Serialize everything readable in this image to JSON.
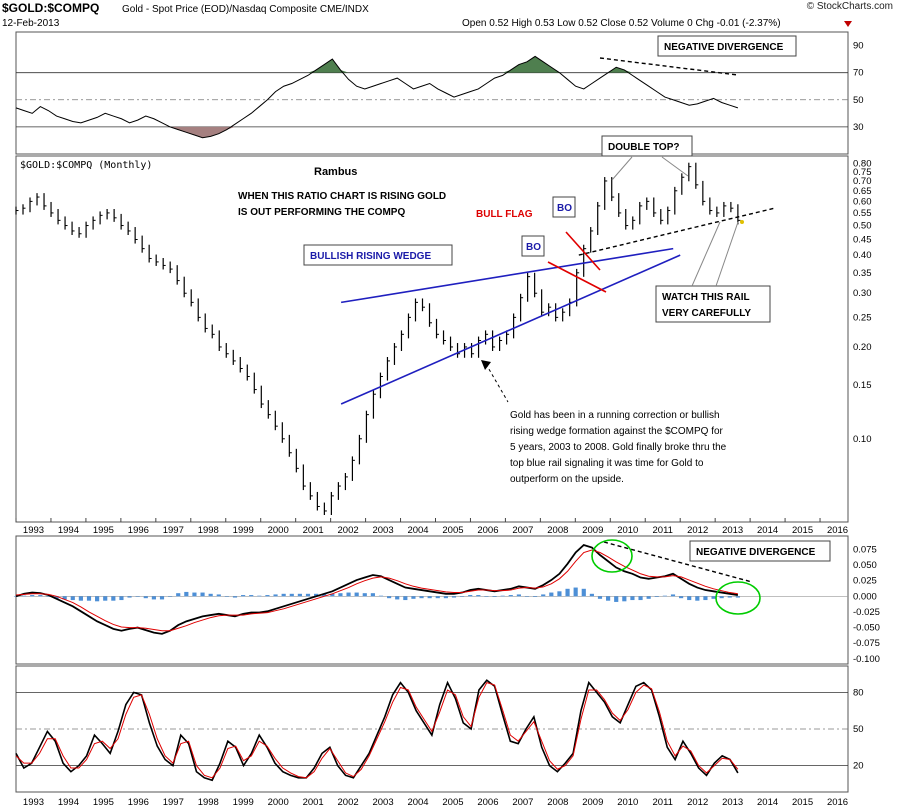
{
  "header": {
    "symbol": "$GOLD:$COMPQ",
    "description": "Gold - Spot Price (EOD)/Nasdaq Composite  CME/INDX",
    "date": "12-Feb-2013",
    "quote": "Open 0.52  High 0.53  Low 0.52  Close 0.52  Volume 0  Chg -0.01 (-2.37%)",
    "watermark": "© StockCharts.com",
    "main_label": "$GOLD:$COMPQ (Monthly)"
  },
  "colors": {
    "price": "#000000",
    "trendline": "#1f1fbf",
    "flag": "#e00000",
    "histogram": "#4d8fd6",
    "signal": "#e00000",
    "rsi_fill": "#a58080",
    "rsi_fill_high": "#4f7f4f",
    "circle": "#00cc00"
  },
  "annotations": {
    "rambus": "Rambus",
    "ratio_note_1": "WHEN THIS RATIO CHART IS RISING GOLD",
    "ratio_note_2": "IS OUT PERFORMING THE COMPQ",
    "wedge": "BULLISH RISING WEDGE",
    "bull_flag": "BULL FLAG",
    "bo1": "BO",
    "bo2": "BO",
    "double_top": "DOUBLE TOP?",
    "neg_div_top": "NEGATIVE DIVERGENCE",
    "neg_div_macd": "NEGATIVE DIVERGENCE",
    "watch_1": "WATCH THIS RAIL",
    "watch_2": "VERY CAREFULLY",
    "gold_note": [
      "Gold has been in a running correction or bullish",
      "rising wedge formation against the $COMPQ for",
      "5 years, 2003 to 2008.  Gold finally broke thru the",
      "top blue rail signaling it was time for Gold to",
      "outperform on the upside."
    ]
  },
  "chart_data": [
    {
      "type": "line",
      "panel": "RSI (top)",
      "y_ticks": [
        "90",
        "70",
        "50",
        "30"
      ],
      "ylim": [
        10,
        100
      ],
      "reference_lines": [
        70,
        50,
        30
      ],
      "x_start": 1992.5,
      "x_end": 2013.15,
      "values": [
        44,
        42,
        40,
        45,
        42,
        38,
        36,
        34,
        33,
        35,
        37,
        40,
        38,
        36,
        33,
        35,
        38,
        36,
        33,
        30,
        28,
        26,
        24,
        22,
        23,
        25,
        28,
        32,
        36,
        40,
        45,
        50,
        56,
        60,
        62,
        65,
        68,
        72,
        76,
        80,
        72,
        65,
        60,
        58,
        60,
        62,
        64,
        66,
        62,
        58,
        60,
        62,
        58,
        55,
        52,
        54,
        56,
        58,
        62,
        66,
        68,
        72,
        76,
        78,
        82,
        78,
        74,
        70,
        65,
        60,
        58,
        62,
        66,
        70,
        74,
        72,
        68,
        64,
        60,
        56,
        52,
        50,
        48,
        46,
        47,
        49,
        51,
        48,
        46,
        44
      ]
    },
    {
      "type": "bar",
      "panel": "main price (monthly OHLC, log scale)",
      "title": "$GOLD:$COMPQ (Monthly)",
      "y_ticks": [
        "0.80",
        "0.75",
        "0.70",
        "0.65",
        "0.60",
        "0.55",
        "0.50",
        "0.45",
        "0.40",
        "0.35",
        "0.30",
        "0.25",
        "0.20",
        "0.15",
        "0.10"
      ],
      "ylim": [
        0.055,
        0.82
      ],
      "log_scale": true,
      "x_ticks": [
        "1993",
        "1994",
        "1995",
        "1996",
        "1997",
        "1998",
        "1999",
        "2000",
        "2001",
        "2002",
        "2003",
        "2004",
        "2005",
        "2006",
        "2007",
        "2008",
        "2009",
        "2010",
        "2011",
        "2012",
        "2013",
        "2014",
        "2015",
        "2016"
      ],
      "xlim": [
        1992.5,
        2016.3
      ],
      "x_start": 1992.5,
      "x_end": 2013.15,
      "values": [
        0.56,
        0.57,
        0.6,
        0.62,
        0.58,
        0.55,
        0.52,
        0.5,
        0.48,
        0.47,
        0.5,
        0.52,
        0.54,
        0.55,
        0.53,
        0.5,
        0.48,
        0.45,
        0.42,
        0.39,
        0.38,
        0.37,
        0.36,
        0.33,
        0.3,
        0.28,
        0.25,
        0.23,
        0.22,
        0.2,
        0.19,
        0.18,
        0.17,
        0.16,
        0.145,
        0.13,
        0.12,
        0.11,
        0.1,
        0.09,
        0.08,
        0.07,
        0.065,
        0.06,
        0.058,
        0.065,
        0.07,
        0.075,
        0.085,
        0.1,
        0.12,
        0.14,
        0.16,
        0.18,
        0.2,
        0.22,
        0.25,
        0.28,
        0.27,
        0.24,
        0.22,
        0.21,
        0.2,
        0.19,
        0.2,
        0.19,
        0.21,
        0.22,
        0.2,
        0.21,
        0.22,
        0.25,
        0.29,
        0.34,
        0.3,
        0.26,
        0.27,
        0.25,
        0.26,
        0.28,
        0.35,
        0.42,
        0.48,
        0.58,
        0.7,
        0.62,
        0.55,
        0.5,
        0.52,
        0.58,
        0.6,
        0.55,
        0.52,
        0.56,
        0.65,
        0.72,
        0.78,
        0.68,
        0.6,
        0.56,
        0.55,
        0.58,
        0.57,
        0.52
      ],
      "trendlines": {
        "wedge_upper": {
          "from": [
            2001.8,
            0.28
          ],
          "to": [
            2011.3,
            0.42
          ]
        },
        "wedge_lower": {
          "from": [
            2001.8,
            0.13
          ],
          "to": [
            2011.5,
            0.4
          ]
        },
        "support_rail": {
          "from": [
            2008.6,
            0.4
          ],
          "to": [
            2014.2,
            0.57
          ]
        }
      }
    },
    {
      "type": "line",
      "panel": "MACD",
      "y_ticks": [
        "0.075",
        "0.050",
        "0.025",
        "0.000",
        "-0.025",
        "-0.050",
        "-0.075",
        "-0.100"
      ],
      "ylim": [
        -0.105,
        0.09
      ],
      "x_start": 1992.5,
      "x_end": 2013.15,
      "series": [
        {
          "role": "macd",
          "values": [
            0.0,
            0.004,
            0.006,
            0.005,
            0.002,
            -0.004,
            -0.01,
            -0.016,
            -0.024,
            -0.032,
            -0.04,
            -0.046,
            -0.052,
            -0.055,
            -0.052,
            -0.05,
            -0.054,
            -0.058,
            -0.06,
            -0.055,
            -0.046,
            -0.04,
            -0.036,
            -0.032,
            -0.03,
            -0.028,
            -0.03,
            -0.032,
            -0.028,
            -0.026,
            -0.026,
            -0.024,
            -0.02,
            -0.016,
            -0.012,
            -0.008,
            -0.004,
            0.0,
            0.004,
            0.008,
            0.014,
            0.02,
            0.026,
            0.03,
            0.034,
            0.032,
            0.026,
            0.02,
            0.014,
            0.012,
            0.01,
            0.008,
            0.006,
            0.004,
            0.004,
            0.006,
            0.01,
            0.012,
            0.01,
            0.008,
            0.01,
            0.012,
            0.016,
            0.014,
            0.012,
            0.018,
            0.026,
            0.036,
            0.052,
            0.07,
            0.082,
            0.078,
            0.066,
            0.056,
            0.046,
            0.04,
            0.036,
            0.03,
            0.028,
            0.03,
            0.032,
            0.036,
            0.028,
            0.02,
            0.014,
            0.01,
            0.008,
            0.006,
            0.004,
            0.002
          ]
        },
        {
          "role": "signal",
          "values": [
            0.002,
            0.003,
            0.004,
            0.004,
            0.003,
            0.0,
            -0.005,
            -0.01,
            -0.017,
            -0.025,
            -0.032,
            -0.039,
            -0.045,
            -0.049,
            -0.05,
            -0.05,
            -0.051,
            -0.053,
            -0.055,
            -0.055,
            -0.051,
            -0.047,
            -0.042,
            -0.038,
            -0.034,
            -0.031,
            -0.03,
            -0.03,
            -0.03,
            -0.028,
            -0.027,
            -0.026,
            -0.023,
            -0.02,
            -0.016,
            -0.012,
            -0.008,
            -0.004,
            0.0,
            0.004,
            0.009,
            0.014,
            0.02,
            0.025,
            0.029,
            0.031,
            0.029,
            0.025,
            0.02,
            0.016,
            0.013,
            0.011,
            0.009,
            0.007,
            0.006,
            0.006,
            0.008,
            0.01,
            0.01,
            0.009,
            0.009,
            0.01,
            0.013,
            0.014,
            0.013,
            0.015,
            0.02,
            0.028,
            0.04,
            0.056,
            0.07,
            0.074,
            0.07,
            0.063,
            0.055,
            0.048,
            0.042,
            0.036,
            0.032,
            0.031,
            0.031,
            0.033,
            0.031,
            0.026,
            0.021,
            0.016,
            0.012,
            0.009,
            0.006,
            0.004
          ]
        }
      ],
      "histogram": [
        0.0,
        0.001,
        0.002,
        0.002,
        0.0,
        -0.004,
        -0.005,
        -0.006,
        -0.007,
        -0.007,
        -0.008,
        -0.007,
        -0.007,
        -0.006,
        -0.002,
        0.0,
        -0.003,
        -0.005,
        -0.005,
        0.0,
        0.005,
        0.007,
        0.006,
        0.006,
        0.004,
        0.003,
        0.0,
        -0.002,
        0.002,
        0.002,
        0.001,
        0.002,
        0.003,
        0.004,
        0.004,
        0.004,
        0.004,
        0.004,
        0.004,
        0.004,
        0.005,
        0.006,
        0.006,
        0.005,
        0.005,
        0.001,
        -0.003,
        -0.005,
        -0.006,
        -0.004,
        -0.003,
        -0.003,
        -0.003,
        -0.003,
        -0.002,
        0.0,
        0.002,
        0.002,
        0.0,
        -0.001,
        0.001,
        0.002,
        0.003,
        0.0,
        -0.001,
        0.003,
        0.006,
        0.008,
        0.012,
        0.014,
        0.012,
        0.004,
        -0.004,
        -0.007,
        -0.009,
        -0.008,
        -0.006,
        -0.006,
        -0.004,
        -0.001,
        0.001,
        0.003,
        -0.003,
        -0.006,
        -0.007,
        -0.006,
        -0.004,
        -0.003,
        -0.002,
        -0.002
      ]
    },
    {
      "type": "line",
      "panel": "Stochastic (bottom)",
      "y_ticks": [
        "80",
        "50",
        "20"
      ],
      "ylim": [
        0,
        100
      ],
      "reference_lines": [
        80,
        50,
        20
      ],
      "x_start": 1992.5,
      "x_end": 2013.15,
      "series": [
        {
          "role": "fast",
          "values": [
            30,
            18,
            22,
            35,
            48,
            40,
            22,
            15,
            20,
            28,
            45,
            38,
            30,
            48,
            70,
            80,
            78,
            55,
            36,
            25,
            20,
            45,
            38,
            15,
            10,
            8,
            22,
            40,
            35,
            20,
            30,
            45,
            35,
            22,
            15,
            12,
            10,
            10,
            18,
            30,
            35,
            20,
            12,
            10,
            20,
            30,
            45,
            60,
            78,
            88,
            80,
            65,
            55,
            45,
            70,
            88,
            75,
            55,
            50,
            82,
            90,
            85,
            62,
            40,
            38,
            50,
            60,
            35,
            20,
            15,
            22,
            30,
            65,
            88,
            80,
            72,
            60,
            55,
            70,
            85,
            88,
            82,
            60,
            35,
            25,
            40,
            30,
            18,
            12,
            22,
            28,
            25,
            14
          ]
        },
        {
          "role": "slow",
          "values": [
            28,
            22,
            22,
            30,
            42,
            42,
            28,
            18,
            18,
            25,
            38,
            40,
            34,
            42,
            62,
            76,
            78,
            62,
            42,
            28,
            22,
            38,
            40,
            20,
            12,
            10,
            18,
            34,
            36,
            24,
            28,
            40,
            36,
            26,
            18,
            14,
            11,
            10,
            15,
            26,
            34,
            24,
            14,
            11,
            17,
            28,
            42,
            56,
            72,
            84,
            82,
            68,
            58,
            48,
            64,
            82,
            78,
            60,
            52,
            76,
            88,
            86,
            66,
            45,
            40,
            48,
            56,
            40,
            24,
            17,
            20,
            28,
            58,
            82,
            82,
            74,
            63,
            57,
            66,
            80,
            86,
            83,
            64,
            40,
            28,
            36,
            32,
            20,
            14,
            20,
            26,
            25,
            17
          ]
        }
      ]
    }
  ]
}
